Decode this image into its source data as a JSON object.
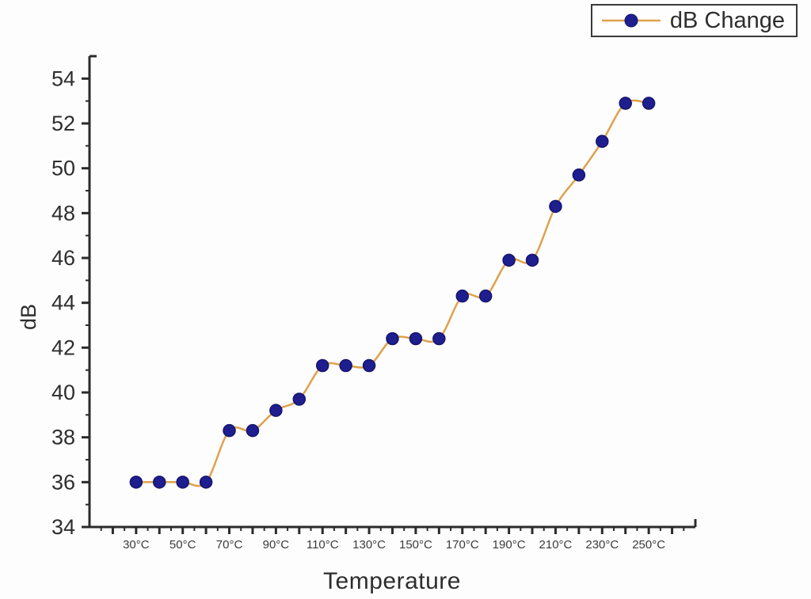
{
  "chart_data": {
    "type": "line",
    "title": "",
    "xlabel": "Temperature",
    "ylabel": "dB",
    "grid": false,
    "legend_position": "top-right",
    "x": [
      30,
      40,
      50,
      60,
      70,
      80,
      90,
      100,
      110,
      120,
      130,
      140,
      150,
      160,
      170,
      180,
      190,
      200,
      210,
      220,
      230,
      240,
      250
    ],
    "series": [
      {
        "name": "dB Change",
        "values": [
          36.0,
          36.0,
          36.0,
          36.0,
          38.3,
          38.3,
          39.2,
          39.7,
          41.2,
          41.2,
          41.2,
          42.4,
          42.4,
          42.4,
          44.3,
          44.3,
          45.9,
          45.9,
          48.3,
          49.7,
          51.2,
          52.9,
          52.9
        ]
      }
    ],
    "xlim": [
      10,
      270
    ],
    "ylim": [
      34,
      55
    ],
    "x_tick_labels": [
      {
        "x": 30,
        "label": "30°C"
      },
      {
        "x": 50,
        "label": "50°C"
      },
      {
        "x": 70,
        "label": "70°C"
      },
      {
        "x": 90,
        "label": "90°C"
      },
      {
        "x": 110,
        "label": "110°C"
      },
      {
        "x": 130,
        "label": "130°C"
      },
      {
        "x": 150,
        "label": "150°C"
      },
      {
        "x": 170,
        "label": "170°C"
      },
      {
        "x": 190,
        "label": "190°C"
      },
      {
        "x": 210,
        "label": "210°C"
      },
      {
        "x": 230,
        "label": "230°C"
      },
      {
        "x": 250,
        "label": "250°C"
      }
    ],
    "x_tick_minor_step": 5,
    "x_tick_major_step": 10,
    "y_tick_minor_step": 1,
    "y_tick_major_step": 2,
    "y_tick_label_min": 34,
    "y_tick_label_max": 54,
    "colors": {
      "line": "#dfa14c",
      "marker_fill": "#1e1e8f",
      "marker_edge": "#15156e",
      "axis": "#2b2b2b",
      "tick_text": "#3b3b3b"
    }
  }
}
